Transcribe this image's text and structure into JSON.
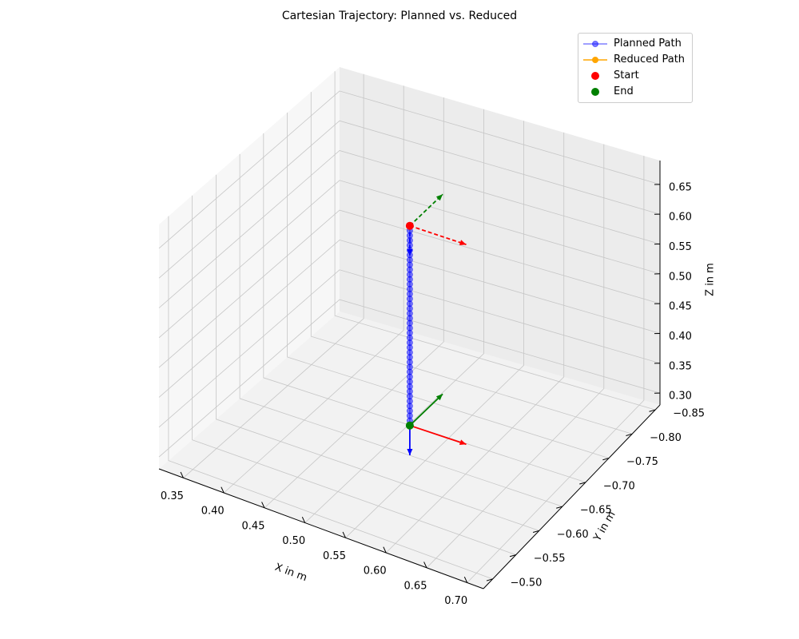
{
  "chart_data": {
    "type": "line",
    "projection": "3d",
    "title": "Cartesian Trajectory: Planned vs. Reduced",
    "xlabel": "X in m",
    "ylabel": "Y in m",
    "zlabel": "Z in m",
    "xlim": [
      0.32,
      0.72
    ],
    "ylim": [
      -0.86,
      -0.48
    ],
    "zlim": [
      0.28,
      0.69
    ],
    "xticks": [
      0.35,
      0.4,
      0.45,
      0.5,
      0.55,
      0.6,
      0.65,
      0.7
    ],
    "yticks": [
      -0.85,
      -0.8,
      -0.75,
      -0.7,
      -0.65,
      -0.6,
      -0.55,
      -0.5
    ],
    "zticks": [
      0.3,
      0.35,
      0.4,
      0.45,
      0.5,
      0.55,
      0.6,
      0.65
    ],
    "xtick_labels": [
      "0.35",
      "0.40",
      "0.45",
      "0.50",
      "0.55",
      "0.60",
      "0.65",
      "0.70"
    ],
    "ytick_labels": [
      "−0.85",
      "−0.80",
      "−0.75",
      "−0.70",
      "−0.65",
      "−0.60",
      "−0.55",
      "−0.50"
    ],
    "ztick_labels": [
      "0.30",
      "0.35",
      "0.40",
      "0.45",
      "0.50",
      "0.55",
      "0.60",
      "0.65"
    ],
    "grid": true,
    "legend_position": "top-right",
    "series": [
      {
        "name": "Planned Path",
        "color": "#0000ff",
        "alpha": 0.5,
        "marker": "circle",
        "x": 0.525,
        "y": -0.66,
        "z_start": 0.655,
        "z_end": 0.32,
        "points": 42
      },
      {
        "name": "Reduced Path",
        "color": "#ffa500",
        "marker": "circle",
        "points": []
      }
    ],
    "markers": [
      {
        "name": "Start",
        "color": "#ff0000",
        "x": 0.525,
        "y": -0.66,
        "z": 0.655
      },
      {
        "name": "End",
        "color": "#008000",
        "x": 0.525,
        "y": -0.66,
        "z": 0.32
      }
    ],
    "frames": [
      {
        "at": "Start",
        "style": "dashed",
        "axes": [
          {
            "axis": "x",
            "color": "#ff0000",
            "direction": [
              0.07,
              0,
              0
            ]
          },
          {
            "axis": "y",
            "color": "#008000",
            "direction": [
              0,
              -0.07,
              0
            ]
          },
          {
            "axis": "z",
            "color": "#0000ff",
            "direction": [
              0,
              0,
              -0.05
            ]
          }
        ]
      },
      {
        "at": "End",
        "style": "solid",
        "axes": [
          {
            "axis": "x",
            "color": "#ff0000",
            "direction": [
              0.07,
              0,
              0
            ]
          },
          {
            "axis": "y",
            "color": "#008000",
            "direction": [
              0,
              -0.07,
              0
            ]
          },
          {
            "axis": "z",
            "color": "#0000ff",
            "direction": [
              0,
              0,
              -0.05
            ]
          }
        ]
      }
    ]
  }
}
